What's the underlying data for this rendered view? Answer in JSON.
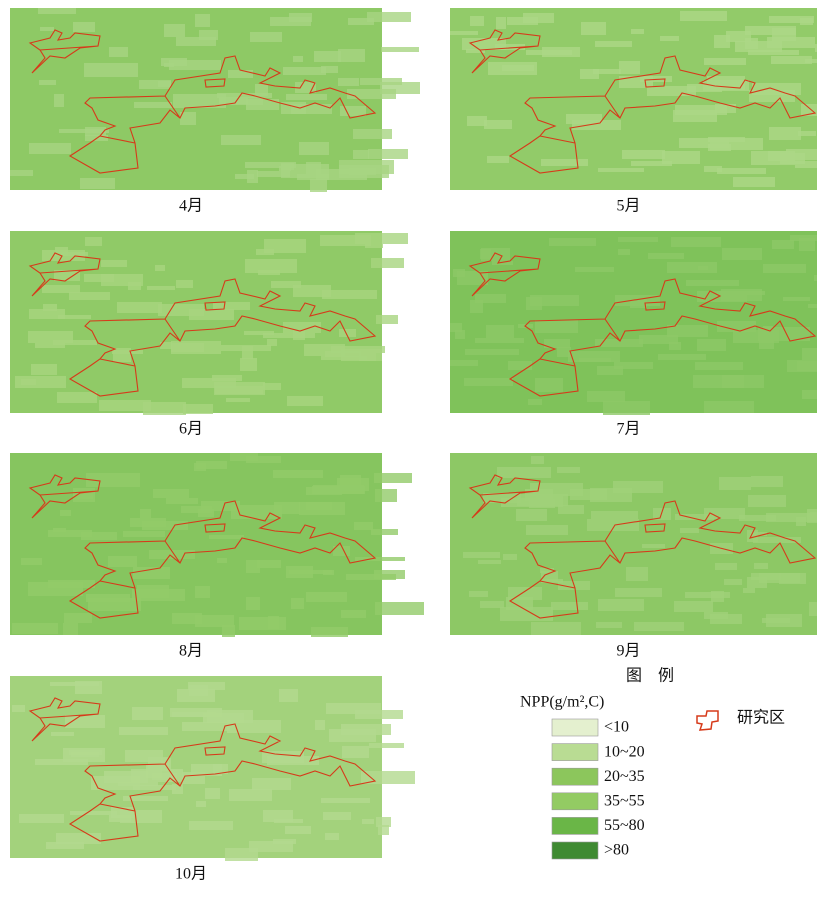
{
  "panels": [
    {
      "label": "4月"
    },
    {
      "label": "5月"
    },
    {
      "label": "6月"
    },
    {
      "label": "7月"
    },
    {
      "label": "8月"
    },
    {
      "label": "9月"
    },
    {
      "label": "10月"
    }
  ],
  "legend": {
    "title": "图　例",
    "npp_title": "NPP(g/m²,C)",
    "items": [
      {
        "label": "<10",
        "color": "#e4f0cf"
      },
      {
        "label": "10~20",
        "color": "#b9dc93"
      },
      {
        "label": "20~35",
        "color": "#8cc65c"
      },
      {
        "label": "35~55",
        "color": "#93cb63"
      },
      {
        "label": "55~80",
        "color": "#6ab647"
      },
      {
        "label": ">80",
        "color": "#3f8a32"
      }
    ],
    "study_area": "研究区"
  }
}
